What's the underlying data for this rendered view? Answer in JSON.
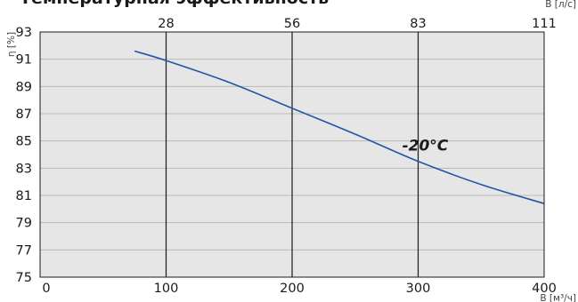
{
  "chart_data": {
    "type": "line",
    "title": "Температурная эффективность",
    "ylabel": "η [%]",
    "xlabel": "В [м³/ч]",
    "x2label": "В [л/с]",
    "xlim": [
      0,
      400
    ],
    "ylim": [
      75,
      93
    ],
    "x_ticks": [
      0,
      100,
      200,
      300,
      400
    ],
    "y_ticks": [
      75,
      77,
      79,
      81,
      83,
      85,
      87,
      89,
      91,
      93
    ],
    "x2_ticks": [
      {
        "at": 100,
        "label": "28"
      },
      {
        "at": 200,
        "label": "56"
      },
      {
        "at": 300,
        "label": "83"
      },
      {
        "at": 400,
        "label": "111"
      }
    ],
    "grid": {
      "horizontal": true,
      "vertical": true
    },
    "annotation": {
      "text": "-20°C",
      "x": 305,
      "y": 84.7
    },
    "series": [
      {
        "x": [
          75,
          100,
          150,
          200,
          250,
          300,
          350,
          400
        ],
        "y": [
          91.6,
          90.9,
          89.3,
          87.4,
          85.5,
          83.5,
          81.8,
          80.4
        ],
        "color": "#1f57a4"
      }
    ],
    "colors": {
      "plot_bg": "#e6e6e6",
      "hgrid": "#b9b9b9",
      "vgrid": "#1a1a1a",
      "curve": "#1f57a4"
    }
  }
}
